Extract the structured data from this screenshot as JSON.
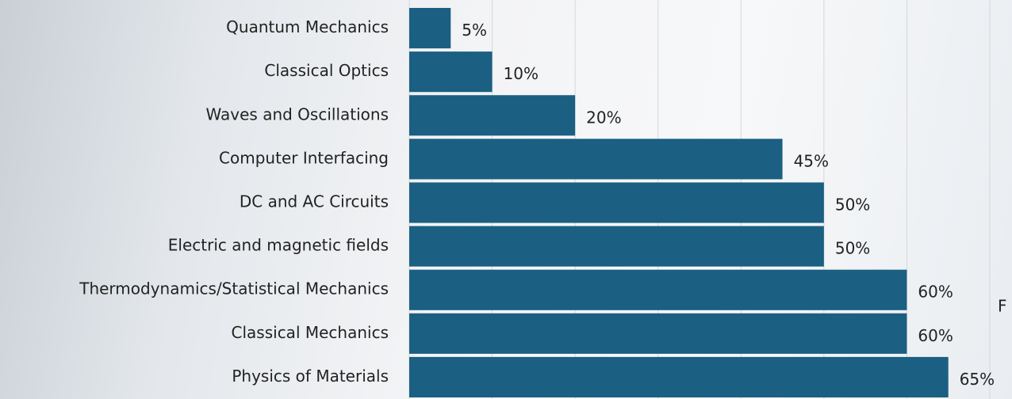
{
  "chart_data": {
    "type": "barh",
    "categories": [
      "Quantum Mechanics",
      "Classical Optics",
      "Waves and Oscillations",
      "Computer Interfacing",
      "DC and AC Circuits",
      "Electric and magnetic fields",
      "Thermodynamics/Statistical Mechanics",
      "Classical Mechanics",
      "Physics of Materials"
    ],
    "values": [
      5,
      10,
      20,
      45,
      50,
      50,
      60,
      60,
      65
    ],
    "value_labels": [
      "5%",
      "10%",
      "20%",
      "45%",
      "50%",
      "50%",
      "60%",
      "60%",
      "65%"
    ],
    "color": "#1b5f82",
    "xlim": [
      0,
      70
    ],
    "xticks": [
      0,
      10,
      20,
      30,
      40,
      50,
      60,
      70
    ],
    "grid": true,
    "annotation": "F"
  }
}
